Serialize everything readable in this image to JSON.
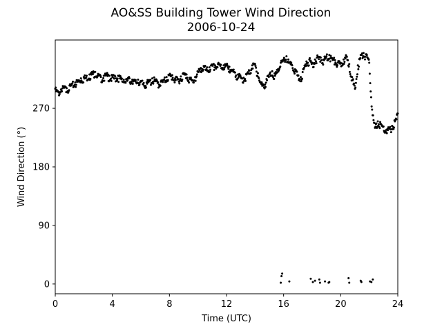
{
  "chart_data": {
    "type": "scatter",
    "title": "AO&SS Building Tower Wind Direction",
    "subtitle": "2006-10-24",
    "xlabel": "Time (UTC)",
    "ylabel": "Wind Direction (°)",
    "xlim": [
      0,
      24
    ],
    "ylim": [
      -15,
      375
    ],
    "xticks": [
      0,
      4,
      8,
      12,
      16,
      20,
      24
    ],
    "yticks": [
      0,
      90,
      180,
      270
    ],
    "grid": false,
    "marker_color": "#000000",
    "marker_style": "dot",
    "series": [
      {
        "values_x": [
          0.0,
          0.2,
          0.4,
          0.6,
          0.8,
          1.0,
          1.2,
          1.4,
          1.6,
          1.8,
          2.0,
          2.2,
          2.4,
          2.6,
          2.8,
          3.0,
          3.2,
          3.4,
          3.6,
          3.8,
          4.0,
          4.2,
          4.4,
          4.6,
          4.8,
          5.0,
          5.2,
          5.4,
          5.6,
          5.8,
          6.0,
          6.2,
          6.4,
          6.6,
          6.8,
          7.0,
          7.2,
          7.4,
          7.6,
          7.8,
          8.0,
          8.2,
          8.4,
          8.6,
          8.8,
          9.0,
          9.2,
          9.4,
          9.6,
          9.8,
          10.0,
          10.2,
          10.4,
          10.6,
          10.8,
          11.0,
          11.2,
          11.4,
          11.6,
          11.8,
          12.0,
          12.2,
          12.4,
          12.6,
          12.8,
          13.0,
          13.2,
          13.4,
          13.6,
          13.8,
          14.0,
          14.2,
          14.4,
          14.6,
          14.8,
          15.0,
          15.2,
          15.4,
          15.6,
          15.8,
          16.0,
          16.2,
          16.4,
          16.6,
          16.8,
          17.0,
          17.2,
          17.4,
          17.6,
          17.8,
          18.0,
          18.2,
          18.4,
          18.6,
          18.8,
          19.0,
          19.2,
          19.4,
          19.6,
          19.8,
          20.0,
          20.2,
          20.4,
          20.6,
          20.8,
          21.0,
          21.2,
          21.4,
          21.6,
          21.8,
          22.0,
          22.2,
          22.4,
          22.6,
          22.8,
          23.0,
          23.2,
          23.4,
          23.6,
          23.8,
          24.0
        ],
        "values_y": [
          300,
          296,
          299,
          303,
          301,
          305,
          308,
          310,
          313,
          316,
          318,
          320,
          322,
          325,
          326,
          323,
          318,
          320,
          322,
          320,
          318,
          319,
          320,
          317,
          314,
          315,
          316,
          314,
          312,
          314,
          312,
          309,
          310,
          312,
          316,
          314,
          310,
          311,
          314,
          318,
          322,
          321,
          316,
          315,
          319,
          324,
          322,
          317,
          313,
          318,
          326,
          332,
          335,
          330,
          333,
          336,
          336,
          338,
          337,
          336,
          337,
          334,
          329,
          325,
          322,
          318,
          317,
          322,
          328,
          336,
          338,
          324,
          310,
          305,
          315,
          322,
          327,
          320,
          330,
          340,
          345,
          350,
          340,
          336,
          330,
          320,
          318,
          330,
          342,
          345,
          340,
          345,
          349,
          348,
          345,
          350,
          352,
          347,
          344,
          340,
          340,
          345,
          350,
          338,
          318,
          300,
          336,
          352,
          355,
          353,
          340,
          268,
          240,
          250,
          246,
          242,
          237,
          239,
          243,
          250,
          262
        ]
      }
    ],
    "near_zero_points": {
      "values_x": [
        15.8,
        15.85,
        15.9,
        16.4,
        17.9,
        18.05,
        18.2,
        18.5,
        18.55,
        18.9,
        19.15,
        19.2,
        20.55,
        20.6,
        21.4,
        21.45,
        22.05,
        22.15,
        22.25
      ],
      "values_y": [
        2,
        12,
        16,
        4,
        8,
        3,
        5,
        7,
        2,
        4,
        2,
        3,
        9,
        2,
        5,
        3,
        4,
        3,
        7
      ]
    }
  }
}
